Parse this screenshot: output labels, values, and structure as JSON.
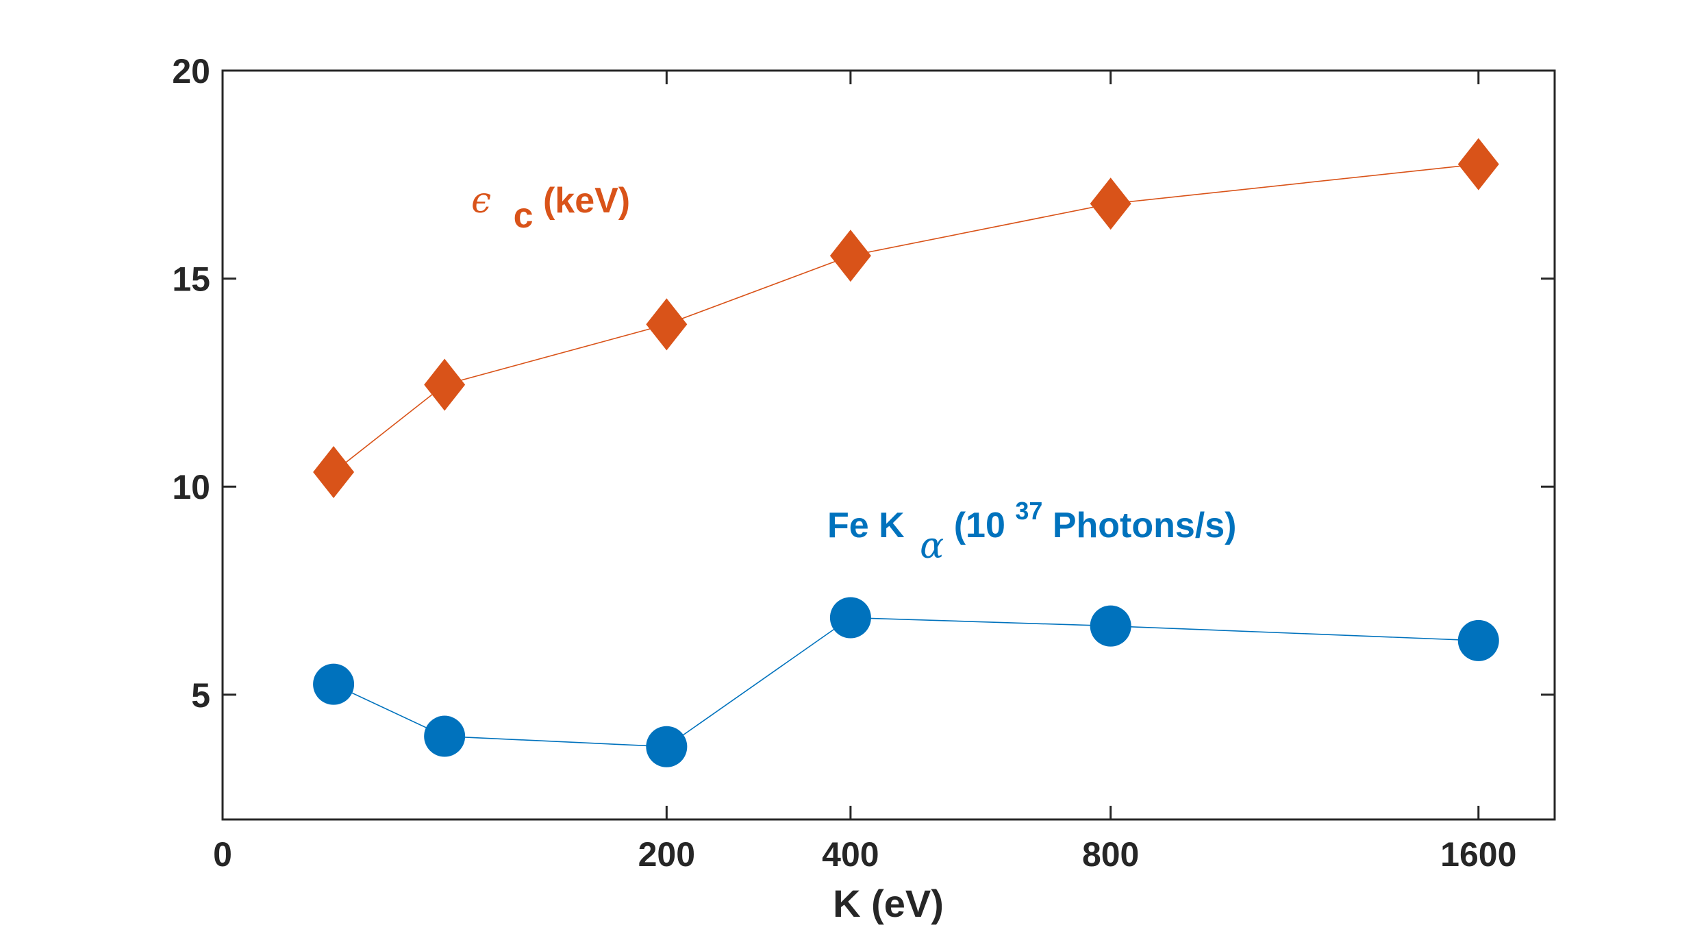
{
  "chart_data": {
    "type": "line",
    "xlabel": "K (eV)",
    "ylabel": "",
    "x_scale": "sqrt",
    "xlim": [
      0,
      1800
    ],
    "ylim": [
      2,
      20
    ],
    "x_ticks": [
      0,
      200,
      400,
      800,
      1600
    ],
    "x_tick_labels": [
      "0",
      "200",
      "400",
      "800",
      "1600"
    ],
    "y_ticks": [
      5,
      10,
      15,
      20
    ],
    "y_tick_labels": [
      "5",
      "10",
      "15",
      "20"
    ],
    "grid": false,
    "series": [
      {
        "key": "ec",
        "label_symbol": "ϵ",
        "label_sub": "c",
        "label_rest": " (keV)",
        "color": "#D95319",
        "marker": "diamond",
        "x": [
          12.5,
          50,
          200,
          400,
          800,
          1600
        ],
        "y": [
          10.35,
          12.45,
          13.9,
          15.55,
          16.8,
          17.75
        ]
      },
      {
        "key": "fe",
        "label_main": "Fe K",
        "label_sub": "α",
        "label_pre_sup": " (10",
        "label_sup": "37",
        "label_rest": " Photons/s)",
        "color": "#0072BD",
        "marker": "circle",
        "x": [
          12.5,
          50,
          200,
          400,
          800,
          1600
        ],
        "y": [
          5.25,
          4.0,
          3.75,
          6.85,
          6.65,
          6.3
        ]
      }
    ]
  }
}
